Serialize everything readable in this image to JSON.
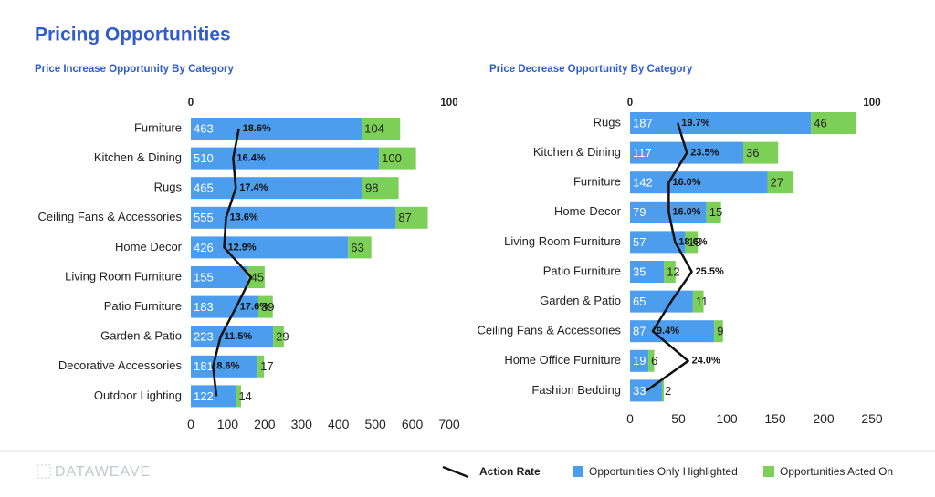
{
  "title": "Pricing Opportunities",
  "brand": "DATAWEAVE",
  "chart_data": [
    {
      "type": "bar",
      "orientation": "horizontal",
      "stacked": true,
      "title": "Price Increase Opportunity By Category",
      "categories": [
        "Furniture",
        "Kitchen & Dining",
        "Rugs",
        "Ceiling Fans & Accessories",
        "Home Decor",
        "Living Room Furniture",
        "Patio Furniture",
        "Garden & Patio",
        "Decorative Accessories",
        "Outdoor Lighting"
      ],
      "series": [
        {
          "name": "Opportunities Only Highlighted",
          "color": "#4c9ded",
          "values": [
            463,
            510,
            465,
            555,
            426,
            155,
            183,
            223,
            181,
            122
          ]
        },
        {
          "name": "Opportunities Acted On",
          "color": "#7dd057",
          "values": [
            104,
            100,
            98,
            87,
            63,
            45,
            39,
            29,
            17,
            14
          ]
        },
        {
          "name": "Action Rate",
          "type": "line",
          "axis": "x2",
          "color": "#111111",
          "values": [
            18.6,
            16.4,
            17.4,
            13.6,
            12.9,
            23.3,
            17.6,
            11.5,
            8.6,
            9.9
          ],
          "value_labels": [
            "18.6%",
            "16.4%",
            "17.4%",
            "13.6%",
            "12.9%",
            null,
            "17.6%",
            "11.5%",
            "8.6%",
            null
          ]
        }
      ],
      "xlim": [
        0,
        700
      ],
      "xticks": [
        0,
        100,
        200,
        300,
        400,
        500,
        600,
        700
      ],
      "x2lim": [
        0,
        100
      ],
      "x2ticks": [
        0,
        100
      ]
    },
    {
      "type": "bar",
      "orientation": "horizontal",
      "stacked": true,
      "title": "Price Decrease Opportunity By Category",
      "categories": [
        "Rugs",
        "Kitchen & Dining",
        "Furniture",
        "Home Decor",
        "Living Room Furniture",
        "Patio Furniture",
        "Garden & Patio",
        "Ceiling Fans & Accessories",
        "Home Office Furniture",
        "Fashion Bedding"
      ],
      "series": [
        {
          "color": "#4c9ded",
          "values": [
            187,
            117,
            142,
            79,
            57,
            35,
            65,
            87,
            19,
            33
          ]
        },
        {
          "color": "#7dd057",
          "values": [
            46,
            36,
            27,
            15,
            13,
            12,
            11,
            9,
            6,
            2
          ]
        },
        {
          "type": "line",
          "axis": "x2",
          "color": "#111111",
          "values": [
            19.7,
            23.5,
            16.0,
            16.0,
            18.6,
            25.5,
            17.0,
            9.4,
            24.0,
            6.8
          ],
          "value_labels": [
            "19.7%",
            "23.5%",
            "16.0%",
            "16.0%",
            "18.6%",
            "25.5%",
            null,
            "9.4%",
            "24.0%",
            null
          ]
        }
      ],
      "xlim": [
        0,
        250
      ],
      "xticks": [
        0,
        50,
        100,
        150,
        200,
        250
      ],
      "x2lim": [
        0,
        100
      ],
      "x2ticks": [
        0,
        100
      ]
    }
  ]
}
